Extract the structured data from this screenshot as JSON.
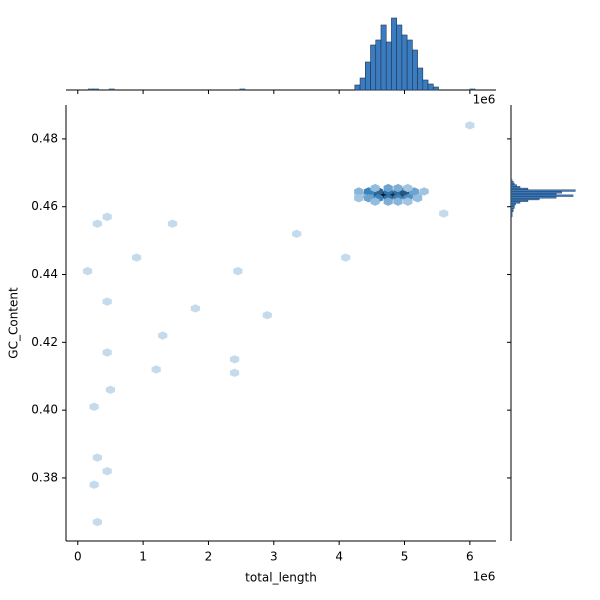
{
  "chart_data": {
    "type": "hexbin",
    "x_label": "total_length",
    "y_label": "GC_Content",
    "x_offset_label": "1e6",
    "xlim": [
      -0.18,
      6.4
    ],
    "ylim": [
      0.3614,
      0.49
    ],
    "xticks": [
      0,
      1,
      2,
      3,
      4,
      5,
      6
    ],
    "yticks": [
      0.38,
      {
        "value": 0.4,
        "label": "0.40"
      },
      0.42,
      0.44,
      0.46,
      0.48
    ],
    "cmap": [
      "#f4f9fe",
      "#3b83bd",
      "#0b1c30"
    ],
    "hexes": {
      "x": [
        4.5,
        4.6,
        4.7,
        4.8,
        4.9,
        5.0,
        4.4,
        5.1,
        5.2,
        4.3,
        4.45,
        4.6,
        4.75,
        4.9,
        5.0,
        4.3,
        5.15,
        5.3,
        4.45,
        4.6,
        4.75,
        4.9,
        5.05,
        5.2,
        4.3,
        4.55,
        4.75,
        4.9,
        5.05,
        4.55,
        4.75,
        4.9,
        5.05,
        0.15,
        0.3,
        0.45,
        0.45,
        0.45,
        0.5,
        0.25,
        0.3,
        0.25,
        0.3,
        0.45,
        0.9,
        1.2,
        1.3,
        1.45,
        1.8,
        2.45,
        2.4,
        2.4,
        2.9,
        3.35,
        4.1,
        6.0,
        5.6
      ],
      "y": [
        0.4635,
        0.4635,
        0.4635,
        0.4635,
        0.4635,
        0.4635,
        0.4635,
        0.4635,
        0.4635,
        0.4635,
        0.4645,
        0.4645,
        0.4645,
        0.4645,
        0.4645,
        0.4645,
        0.4645,
        0.4645,
        0.4625,
        0.4625,
        0.4625,
        0.4625,
        0.4625,
        0.4625,
        0.4625,
        0.4655,
        0.4655,
        0.4655,
        0.4655,
        0.4615,
        0.4615,
        0.4615,
        0.4615,
        0.441,
        0.455,
        0.457,
        0.432,
        0.417,
        0.406,
        0.401,
        0.386,
        0.378,
        0.367,
        0.382,
        0.445,
        0.412,
        0.422,
        0.455,
        0.43,
        0.441,
        0.415,
        0.411,
        0.428,
        0.452,
        0.445,
        0.484,
        0.458
      ],
      "counts": [
        10,
        30,
        60,
        55,
        35,
        40,
        5,
        10,
        3,
        2,
        15,
        25,
        20,
        22,
        30,
        5,
        8,
        3,
        8,
        15,
        20,
        15,
        12,
        4,
        3,
        4,
        8,
        6,
        3,
        4,
        6,
        5,
        3,
        1,
        1,
        1,
        1,
        1,
        1,
        1,
        1,
        1,
        1,
        1,
        1,
        1,
        1,
        1,
        1,
        1,
        1,
        1,
        1,
        1,
        1,
        1,
        1
      ]
    },
    "top_hist": {
      "color": "#3b7bbf",
      "ylim": [
        0,
        75
      ],
      "bins": [
        0.08,
        0.16,
        0.24,
        0.32,
        0.4,
        0.48,
        0.56,
        0.64,
        0.72,
        0.8,
        0.88,
        0.96,
        1.04,
        1.12,
        1.2,
        1.28,
        1.36,
        1.44,
        1.52,
        1.6,
        1.68,
        1.76,
        1.84,
        1.92,
        2.0,
        2.08,
        2.16,
        2.24,
        2.32,
        2.4,
        2.48,
        2.56,
        2.64,
        2.72,
        2.8,
        2.88,
        2.96,
        3.04,
        3.12,
        3.2,
        3.28,
        3.36,
        3.44,
        3.52,
        3.6,
        3.68,
        3.76,
        3.84,
        3.92,
        4.0,
        4.08,
        4.16,
        4.24,
        4.32,
        4.4,
        4.48,
        4.56,
        4.64,
        4.72,
        4.8,
        4.88,
        4.96,
        5.04,
        5.12,
        5.2,
        5.28,
        5.36,
        5.44,
        5.52,
        5.6,
        5.68,
        5.76,
        5.84,
        5.92,
        6.0,
        6.08,
        6.16,
        6.24,
        6.32
      ],
      "counts": [
        0,
        1,
        1,
        0,
        0,
        1,
        0,
        0,
        0,
        0,
        0,
        0,
        0,
        0,
        0,
        0,
        0,
        0,
        0,
        0,
        0,
        0,
        0,
        0,
        0,
        0,
        0,
        0,
        0,
        0,
        1,
        0,
        0,
        0,
        0,
        0,
        0,
        0,
        0,
        0,
        0,
        0,
        0,
        0,
        0,
        0,
        0,
        0,
        0,
        0,
        0,
        0,
        5,
        12,
        28,
        45,
        50,
        65,
        48,
        72,
        65,
        55,
        50,
        40,
        22,
        10,
        6,
        3,
        0,
        0,
        0,
        0,
        0,
        0,
        1,
        0,
        0,
        0
      ]
    },
    "right_hist": {
      "color": "#3b7bbf",
      "xlim": [
        0,
        62
      ],
      "bins": [
        0.457,
        0.4575,
        0.458,
        0.4585,
        0.459,
        0.4595,
        0.46,
        0.4605,
        0.461,
        0.4615,
        0.462,
        0.4625,
        0.463,
        0.4635,
        0.464,
        0.4645,
        0.465,
        0.4655,
        0.466,
        0.4665,
        0.467,
        0.4675,
        0.468
      ],
      "counts": [
        1,
        1,
        1,
        2,
        2,
        3,
        3,
        4,
        8,
        15,
        25,
        40,
        55,
        40,
        45,
        57,
        15,
        8,
        5,
        3,
        2,
        1
      ]
    }
  }
}
